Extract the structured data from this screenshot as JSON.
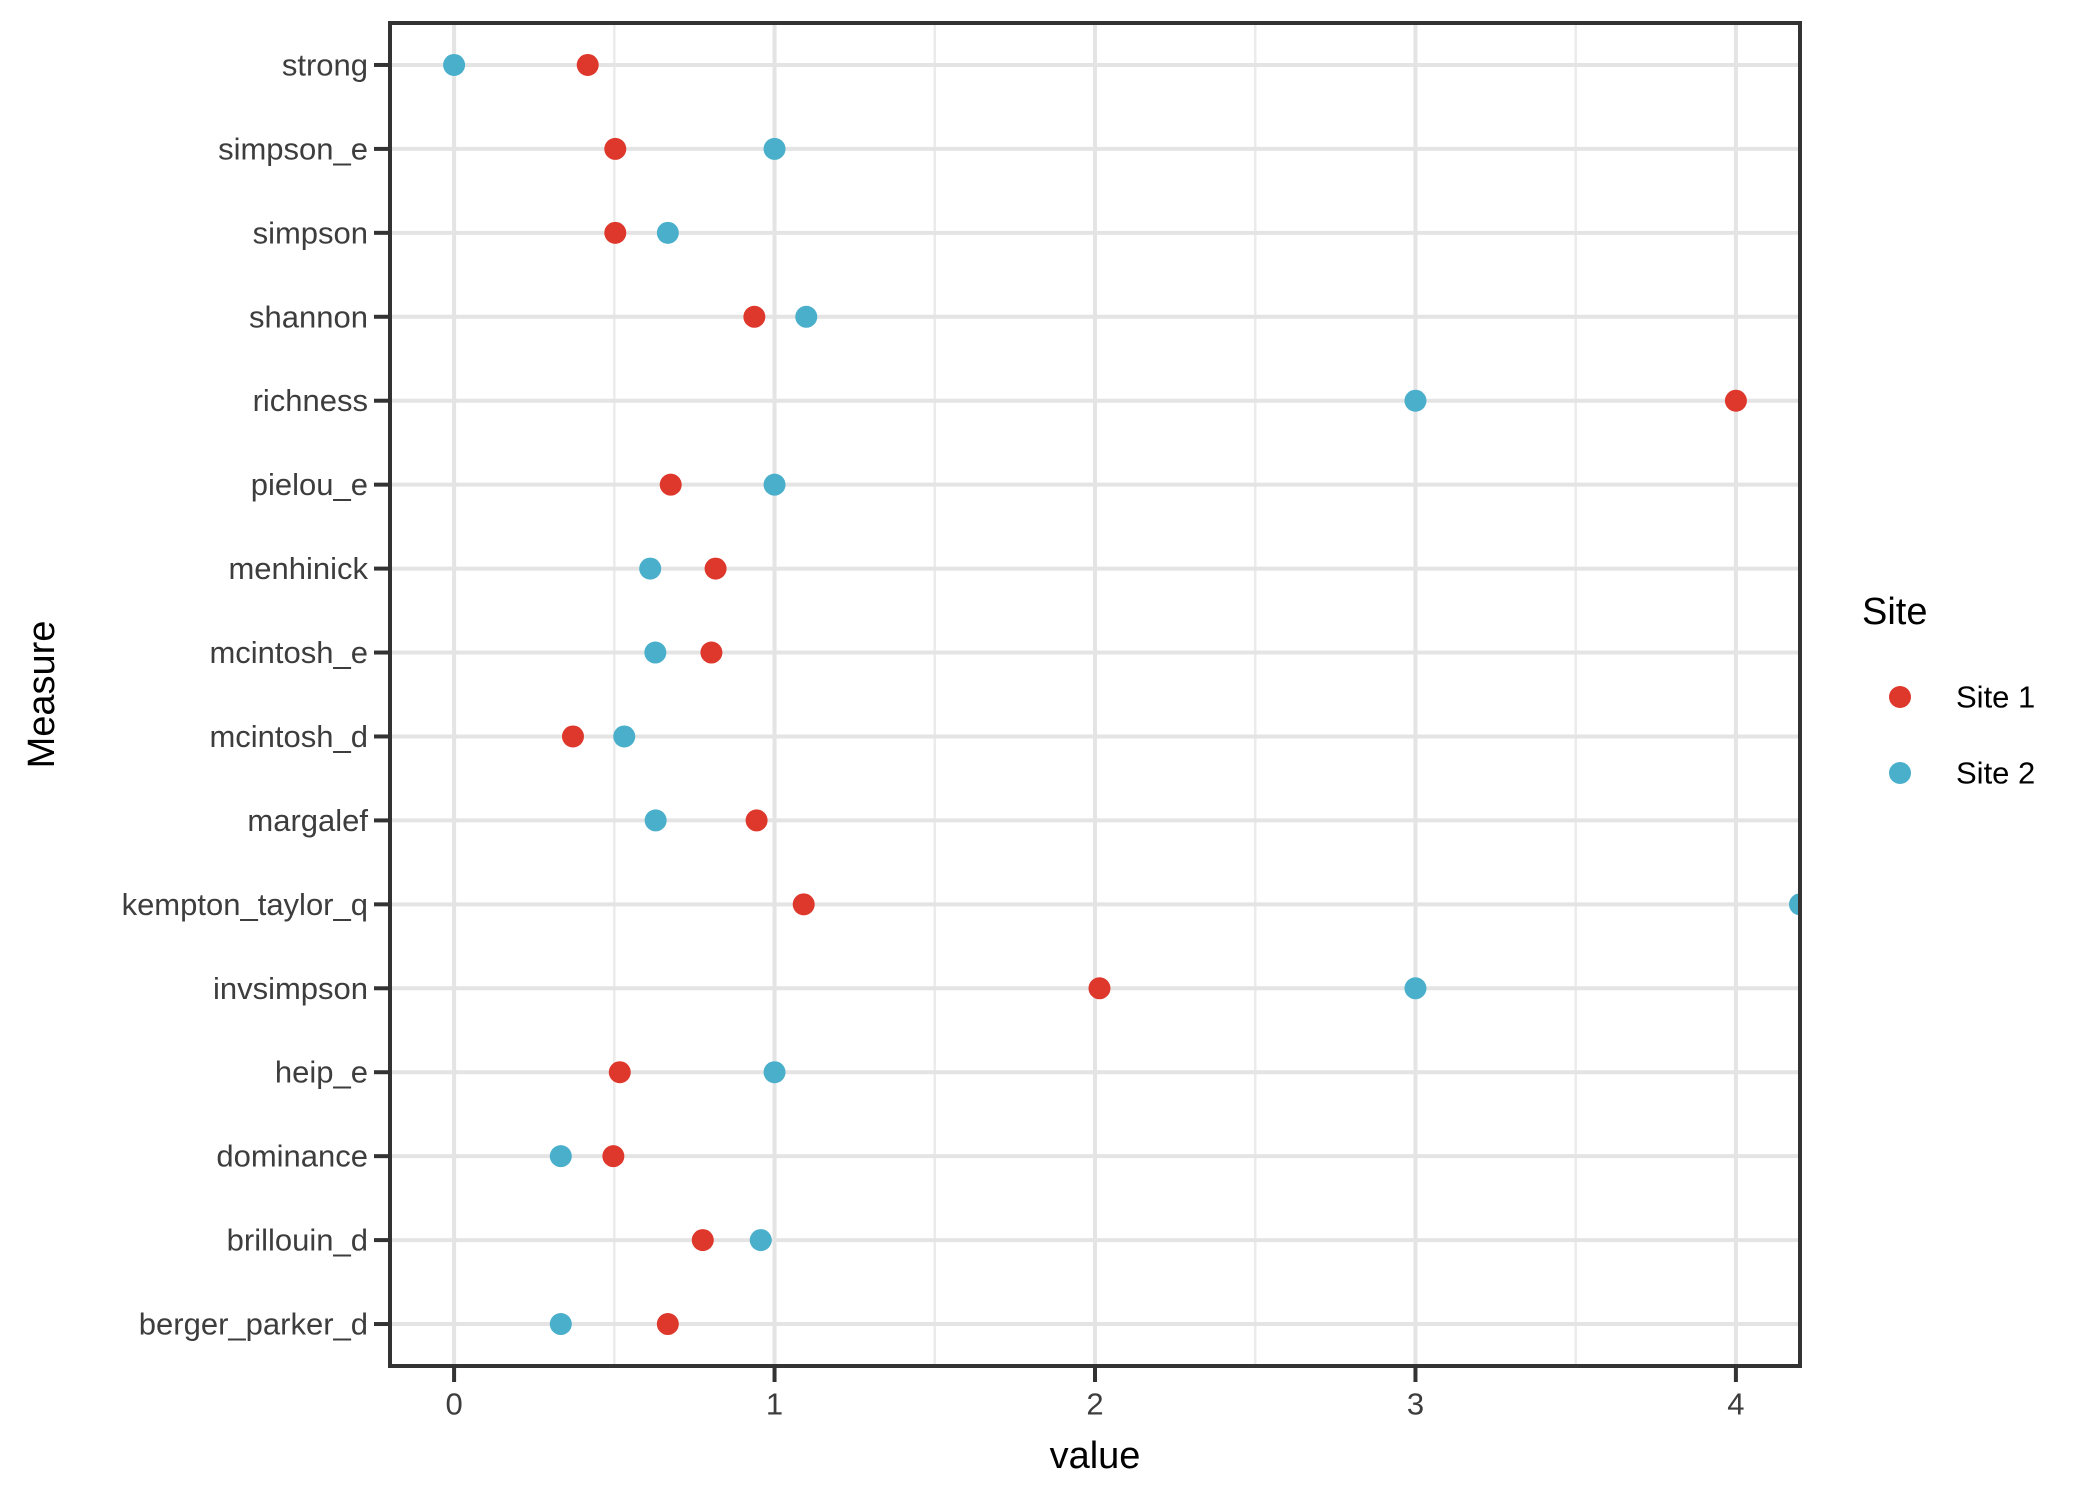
{
  "figure": {
    "background": "#ffffff",
    "title": ""
  },
  "chart_data": {
    "type": "scatter",
    "subtype": "horizontal-dot-plot",
    "title": "",
    "xlabel": "value",
    "ylabel": "Measure",
    "xlim": [
      -0.2,
      4.2
    ],
    "x_major_ticks": [
      0,
      1,
      2,
      3,
      4
    ],
    "x_tick_labels": [
      "0",
      "1",
      "2",
      "3",
      "4"
    ],
    "x_minor_gridlines": [
      0.5,
      1.5,
      2.5,
      3.5
    ],
    "grid": "on",
    "categories_top_to_bottom": [
      "strong",
      "simpson_e",
      "simpson",
      "shannon",
      "richness",
      "pielou_e",
      "menhinick",
      "mcintosh_e",
      "mcintosh_d",
      "margalef",
      "kempton_taylor_q",
      "invsimpson",
      "heip_e",
      "dominance",
      "brillouin_d",
      "berger_parker_d"
    ],
    "series": [
      {
        "name": "Site 1",
        "color": "#DE372B",
        "values": [
          0.417,
          0.503,
          0.503,
          0.937,
          4.0,
          0.676,
          0.816,
          0.803,
          0.371,
          0.944,
          1.091,
          2.014,
          0.517,
          0.497,
          0.776,
          0.667
        ]
      },
      {
        "name": "Site 2",
        "color": "#49AFCB",
        "values": [
          0.0,
          1.0,
          0.667,
          1.099,
          3.0,
          1.0,
          0.612,
          0.628,
          0.531,
          0.629,
          4.2,
          3.0,
          1.0,
          0.333,
          0.957,
          0.333
        ]
      }
    ],
    "annotations": [
      "Site 2 kempton_taylor_q dot is half-clipped at the right panel border (value at/off the axis limit)"
    ],
    "legend": {
      "title": "Site",
      "position": "right",
      "entries": [
        "Site 1",
        "Site 2"
      ]
    }
  },
  "style": {
    "panel_background": "#ffffff",
    "panel_border_color": "#333333",
    "grid_major_color": "#e4e4e4",
    "grid_minor_color": "#ebebeb",
    "tick_color": "#333333",
    "tick_label_color": "#3d3d3d",
    "axis_title_color": "#000000",
    "legend_text_color": "#000000"
  }
}
